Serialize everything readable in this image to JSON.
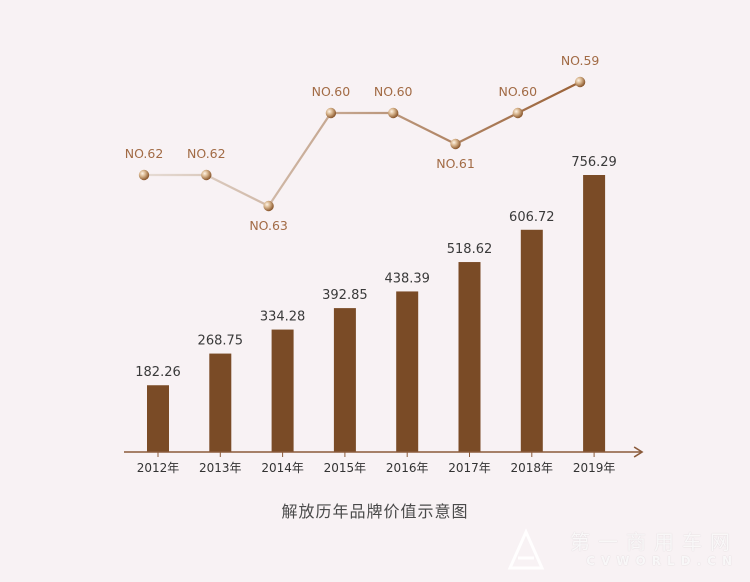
{
  "chart_data": {
    "type": "bar",
    "categories": [
      "2012年",
      "2013年",
      "2014年",
      "2015年",
      "2016年",
      "2017年",
      "2018年",
      "2019年"
    ],
    "values": [
      182.26,
      268.75,
      334.28,
      392.85,
      438.39,
      518.62,
      606.72,
      756.29
    ],
    "value_labels": [
      "182.26",
      "268.75",
      "334.28",
      "392.85",
      "438.39",
      "518.62",
      "606.72",
      "756.29"
    ],
    "rank_series": {
      "values": [
        62,
        62,
        63,
        60,
        60,
        61,
        60,
        59
      ],
      "labels": [
        "NO.62",
        "NO.62",
        "NO.63",
        "NO.60",
        "NO.60",
        "NO.61",
        "NO.60",
        "NO.59"
      ]
    },
    "title": "解放历年品牌价值示意图",
    "xlabel": "",
    "ylabel": "",
    "ylim": [
      0,
      800
    ],
    "bar_color": "#7a4b26",
    "line_color_start": "#e6dcd5",
    "line_color_end": "#9a6136",
    "rank_label_color": "#a26b45",
    "value_label_color": "#3a3a3a",
    "axis_color": "#8a5a3a"
  },
  "watermark": {
    "text_cn": "第一商用车网",
    "text_en": "CVWORLD.CN"
  }
}
